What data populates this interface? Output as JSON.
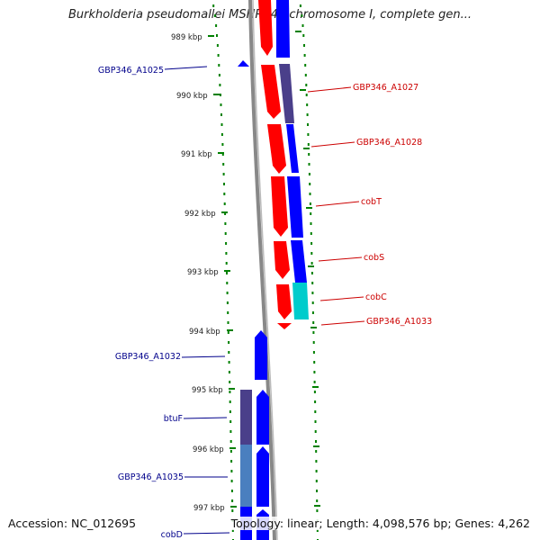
{
  "title": "Burkholderia pseudomallei MSHR346 chromosome I, complete gen...",
  "footer": {
    "accession": "Accession: NC_012695",
    "topology": "Topology: linear; Length: 4,098,576 bp; Genes: 4,262"
  },
  "ticks": [
    "989 kbp",
    "990 kbp",
    "991 kbp",
    "992 kbp",
    "993 kbp",
    "994 kbp",
    "995 kbp",
    "996 kbp",
    "997 kbp"
  ],
  "colors": {
    "forward_strand": "#ff0000",
    "reverse_strand": "#0000ff",
    "dark_blue": "#4a3f8a",
    "teal": "#00cccc",
    "steel": "#4a7fbf",
    "backbone": "#888888",
    "tick": "#008000",
    "label_blue": "#00008b",
    "label_red": "#cc0000"
  },
  "labels": {
    "left": [
      "GBP346_A1025",
      "GBP346_A1032",
      "btuF",
      "GBP346_A1035",
      "cobD"
    ],
    "right": [
      "GBP346_A1027",
      "GBP346_A1028",
      "cobT",
      "cobS",
      "cobC",
      "GBP346_A1033"
    ]
  }
}
